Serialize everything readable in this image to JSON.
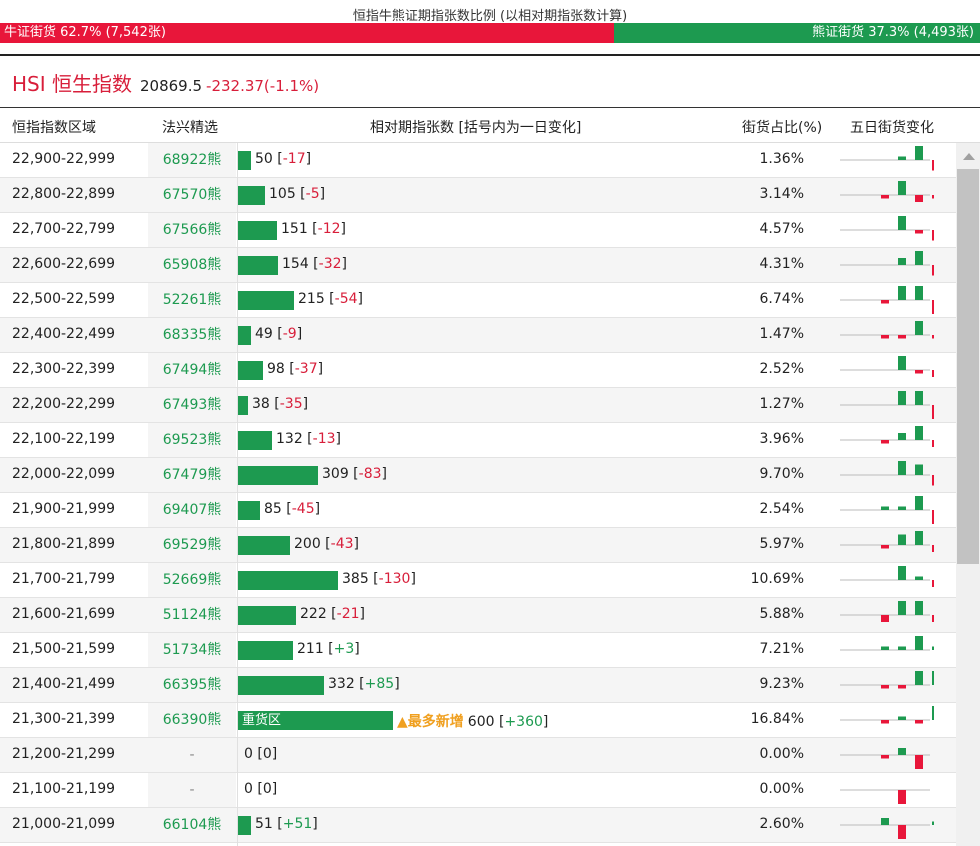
{
  "ratio": {
    "title": "恒指牛熊证期指张数比例 (以相对期指张数计算)",
    "bull_label": "牛证街货 62.7% (7,542张)",
    "bear_label": "熊证街货 37.3% (4,493张)",
    "bull_fraction": 0.627
  },
  "hsi": {
    "name": "HSI 恒生指数",
    "price": "20869.5",
    "change": "-232.37(-1.1%)"
  },
  "headers": {
    "range": "恒指指数区域",
    "warrant": "法兴精选",
    "contracts": "相对期指张数 [括号内为一日变化]",
    "share": "街货占比(%)",
    "trend": "五日街货变化"
  },
  "colors": {
    "bull_red": "#e8163a",
    "bear_green": "#1d9a50",
    "hot_orange": "#f0a020"
  },
  "rows": [
    {
      "range": "22,900-22,999",
      "warrant": "68922熊",
      "contracts": 50,
      "change": "-17",
      "pct": "1.36%",
      "trend": [
        0,
        0,
        1,
        4,
        -3
      ]
    },
    {
      "range": "22,800-22,899",
      "warrant": "67570熊",
      "contracts": 105,
      "change": "-5",
      "pct": "3.14%",
      "trend": [
        0,
        -1,
        4,
        -2,
        -1
      ]
    },
    {
      "range": "22,700-22,799",
      "warrant": "67566熊",
      "contracts": 151,
      "change": "-12",
      "pct": "4.57%",
      "trend": [
        0,
        0,
        4,
        -1,
        -3
      ]
    },
    {
      "range": "22,600-22,699",
      "warrant": "65908熊",
      "contracts": 154,
      "change": "-32",
      "pct": "4.31%",
      "trend": [
        0,
        0,
        2,
        4,
        -3
      ]
    },
    {
      "range": "22,500-22,599",
      "warrant": "52261熊",
      "contracts": 215,
      "change": "-54",
      "pct": "6.74%",
      "trend": [
        0,
        -1,
        4,
        4,
        -4
      ]
    },
    {
      "range": "22,400-22,499",
      "warrant": "68335熊",
      "contracts": 49,
      "change": "-9",
      "pct": "1.47%",
      "trend": [
        0,
        -1,
        -1,
        4,
        -1
      ]
    },
    {
      "range": "22,300-22,399",
      "warrant": "67494熊",
      "contracts": 98,
      "change": "-37",
      "pct": "2.52%",
      "trend": [
        0,
        0,
        4,
        -1,
        -2
      ]
    },
    {
      "range": "22,200-22,299",
      "warrant": "67493熊",
      "contracts": 38,
      "change": "-35",
      "pct": "1.27%",
      "trend": [
        0,
        0,
        4,
        4,
        -4
      ]
    },
    {
      "range": "22,100-22,199",
      "warrant": "69523熊",
      "contracts": 132,
      "change": "-13",
      "pct": "3.96%",
      "trend": [
        0,
        -1,
        2,
        4,
        -2
      ]
    },
    {
      "range": "22,000-22,099",
      "warrant": "67479熊",
      "contracts": 309,
      "change": "-83",
      "pct": "9.70%",
      "trend": [
        0,
        0,
        4,
        3,
        -3
      ]
    },
    {
      "range": "21,900-21,999",
      "warrant": "69407熊",
      "contracts": 85,
      "change": "-45",
      "pct": "2.54%",
      "trend": [
        0,
        1,
        1,
        4,
        -4
      ]
    },
    {
      "range": "21,800-21,899",
      "warrant": "69529熊",
      "contracts": 200,
      "change": "-43",
      "pct": "5.97%",
      "trend": [
        0,
        -1,
        3,
        4,
        -2
      ]
    },
    {
      "range": "21,700-21,799",
      "warrant": "52669熊",
      "contracts": 385,
      "change": "-130",
      "pct": "10.69%",
      "trend": [
        0,
        0,
        4,
        1,
        -2
      ]
    },
    {
      "range": "21,600-21,699",
      "warrant": "51124熊",
      "contracts": 222,
      "change": "-21",
      "pct": "5.88%",
      "trend": [
        0,
        -2,
        4,
        4,
        -2
      ]
    },
    {
      "range": "21,500-21,599",
      "warrant": "51734熊",
      "contracts": 211,
      "change": "+3",
      "pct": "7.21%",
      "trend": [
        0,
        1,
        1,
        4,
        1
      ]
    },
    {
      "range": "21,400-21,499",
      "warrant": "66395熊",
      "contracts": 332,
      "change": "+85",
      "pct": "9.23%",
      "trend": [
        0,
        -1,
        -1,
        4,
        4
      ]
    },
    {
      "range": "21,300-21,399",
      "warrant": "66390熊",
      "contracts": 600,
      "change": "+360",
      "pct": "16.84%",
      "heavy_label": "重货区",
      "hot_label": "▲最多新增",
      "trend": [
        0,
        -1,
        1,
        -1,
        4
      ]
    },
    {
      "range": "21,200-21,299",
      "warrant": "-",
      "contracts": 0,
      "change": "0",
      "pct": "0.00%",
      "trend": [
        0,
        -1,
        2,
        -4,
        0
      ]
    },
    {
      "range": "21,100-21,199",
      "warrant": "-",
      "contracts": 0,
      "change": "0",
      "pct": "0.00%",
      "trend": [
        0,
        0,
        -4,
        0,
        0
      ]
    },
    {
      "range": "21,000-21,099",
      "warrant": "66104熊",
      "contracts": 51,
      "change": "+51",
      "pct": "2.60%",
      "trend": [
        0,
        2,
        -4,
        0,
        1
      ]
    }
  ]
}
